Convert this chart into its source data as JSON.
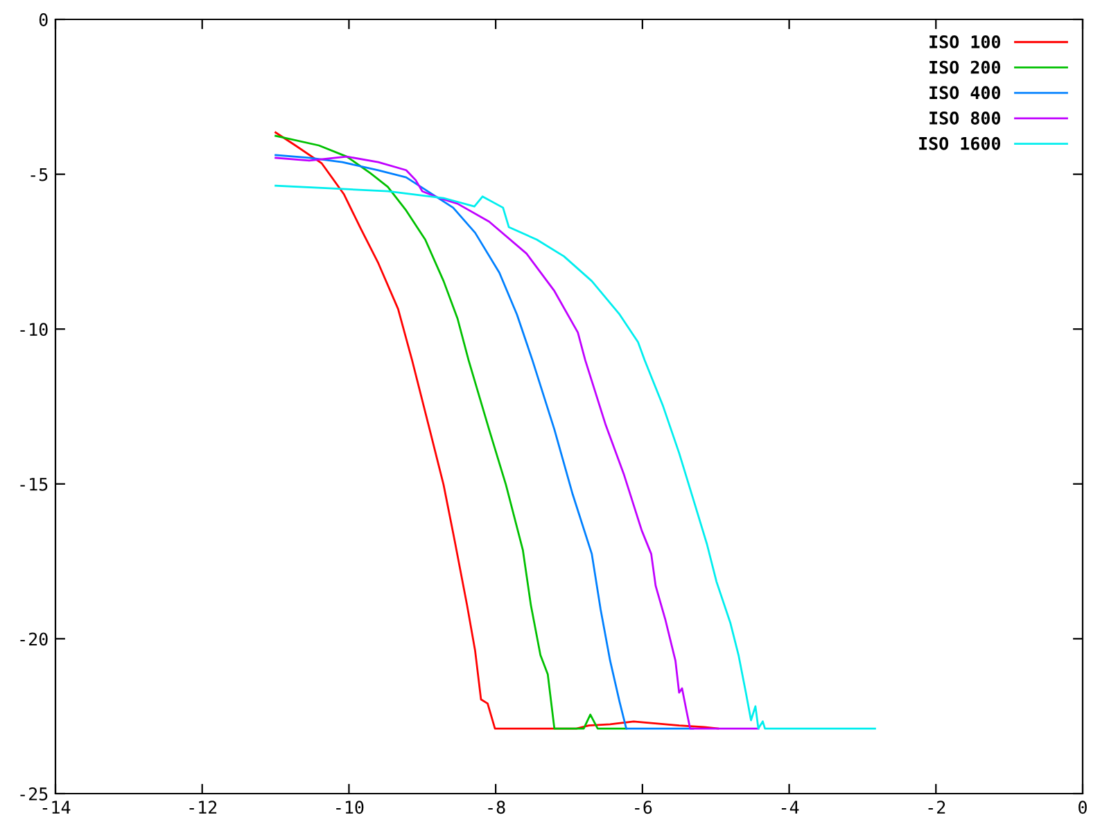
{
  "chart_data": {
    "type": "line",
    "xlim": [
      -14,
      0
    ],
    "ylim": [
      -25,
      0
    ],
    "xticks": [
      -14,
      -12,
      -10,
      -8,
      -6,
      -4,
      -2,
      0
    ],
    "yticks": [
      -25,
      -20,
      -15,
      -10,
      -5,
      0
    ],
    "grid": false,
    "legend": "top right",
    "line_style": "solid",
    "series": [
      {
        "name": "ISO 100",
        "color": "#ff0000",
        "x": [
          -11.0,
          -10.73,
          -10.37,
          -10.07,
          -9.84,
          -9.6,
          -9.33,
          -9.14,
          -8.9,
          -8.71,
          -8.56,
          -8.39,
          -8.28,
          -8.2,
          -8.11,
          -8.01,
          -6.9,
          -6.73,
          -6.44,
          -6.12,
          -5.88,
          -5.69,
          -5.5,
          -5.16,
          -4.97
        ],
        "values": [
          -3.65,
          -4.07,
          -4.65,
          -5.64,
          -6.75,
          -7.87,
          -9.35,
          -11.0,
          -13.24,
          -15.03,
          -16.82,
          -18.92,
          -20.39,
          -21.96,
          -22.09,
          -22.9,
          -22.9,
          -22.8,
          -22.76,
          -22.67,
          -22.72,
          -22.76,
          -22.8,
          -22.85,
          -22.9
        ]
      },
      {
        "name": "ISO 200",
        "color": "#00c000",
        "x": [
          -11.0,
          -10.41,
          -10.03,
          -9.71,
          -9.47,
          -9.22,
          -8.96,
          -8.71,
          -8.52,
          -8.37,
          -8.09,
          -7.86,
          -7.63,
          -7.52,
          -7.39,
          -7.29,
          -7.2,
          -6.8,
          -6.71,
          -6.61,
          -6.22
        ],
        "values": [
          -3.76,
          -4.07,
          -4.43,
          -4.96,
          -5.41,
          -6.17,
          -7.11,
          -8.45,
          -9.66,
          -11.0,
          -13.24,
          -15.03,
          -17.13,
          -18.92,
          -20.53,
          -21.15,
          -22.9,
          -22.9,
          -22.45,
          -22.9,
          -22.9
        ]
      },
      {
        "name": "ISO 400",
        "color": "#0080ff",
        "x": [
          -11.0,
          -10.54,
          -10.09,
          -9.6,
          -9.22,
          -8.96,
          -8.58,
          -8.28,
          -7.95,
          -7.71,
          -7.5,
          -7.2,
          -6.95,
          -6.69,
          -6.57,
          -6.44,
          -6.31,
          -6.22,
          -5.31
        ],
        "values": [
          -4.38,
          -4.47,
          -4.61,
          -4.87,
          -5.1,
          -5.5,
          -6.08,
          -6.89,
          -8.18,
          -9.53,
          -11.0,
          -13.24,
          -15.34,
          -17.26,
          -19.05,
          -20.71,
          -22.05,
          -22.9,
          -22.9
        ]
      },
      {
        "name": "ISO 800",
        "color": "#c000ff",
        "x": [
          -11.0,
          -10.54,
          -10.03,
          -9.6,
          -9.22,
          -9.09,
          -9.0,
          -8.77,
          -8.52,
          -8.09,
          -7.58,
          -7.2,
          -6.88,
          -6.78,
          -6.5,
          -6.25,
          -6.01,
          -5.88,
          -5.82,
          -5.69,
          -5.55,
          -5.5,
          -5.46,
          -5.4,
          -5.35,
          -4.42
        ],
        "values": [
          -4.47,
          -4.56,
          -4.43,
          -4.61,
          -4.87,
          -5.19,
          -5.55,
          -5.77,
          -5.95,
          -6.53,
          -7.56,
          -8.77,
          -10.11,
          -11.0,
          -13.1,
          -14.71,
          -16.5,
          -17.26,
          -18.29,
          -19.36,
          -20.71,
          -21.74,
          -21.6,
          -22.32,
          -22.9,
          -22.9
        ]
      },
      {
        "name": "ISO 1600",
        "color": "#00eeee",
        "x": [
          -11.0,
          -10.22,
          -9.47,
          -8.71,
          -8.29,
          -8.18,
          -7.9,
          -7.82,
          -7.44,
          -7.07,
          -6.69,
          -6.31,
          -6.06,
          -5.97,
          -5.72,
          -5.5,
          -5.31,
          -5.12,
          -4.99,
          -4.8,
          -4.69,
          -4.59,
          -4.52,
          -4.46,
          -4.42,
          -4.36,
          -4.33,
          -2.83
        ],
        "values": [
          -5.37,
          -5.46,
          -5.55,
          -5.77,
          -6.04,
          -5.72,
          -6.08,
          -6.71,
          -7.11,
          -7.65,
          -8.45,
          -9.53,
          -10.42,
          -11.0,
          -12.48,
          -14.0,
          -15.47,
          -16.95,
          -18.16,
          -19.5,
          -20.53,
          -21.74,
          -22.63,
          -22.18,
          -22.9,
          -22.67,
          -22.9,
          -22.9
        ]
      }
    ]
  }
}
